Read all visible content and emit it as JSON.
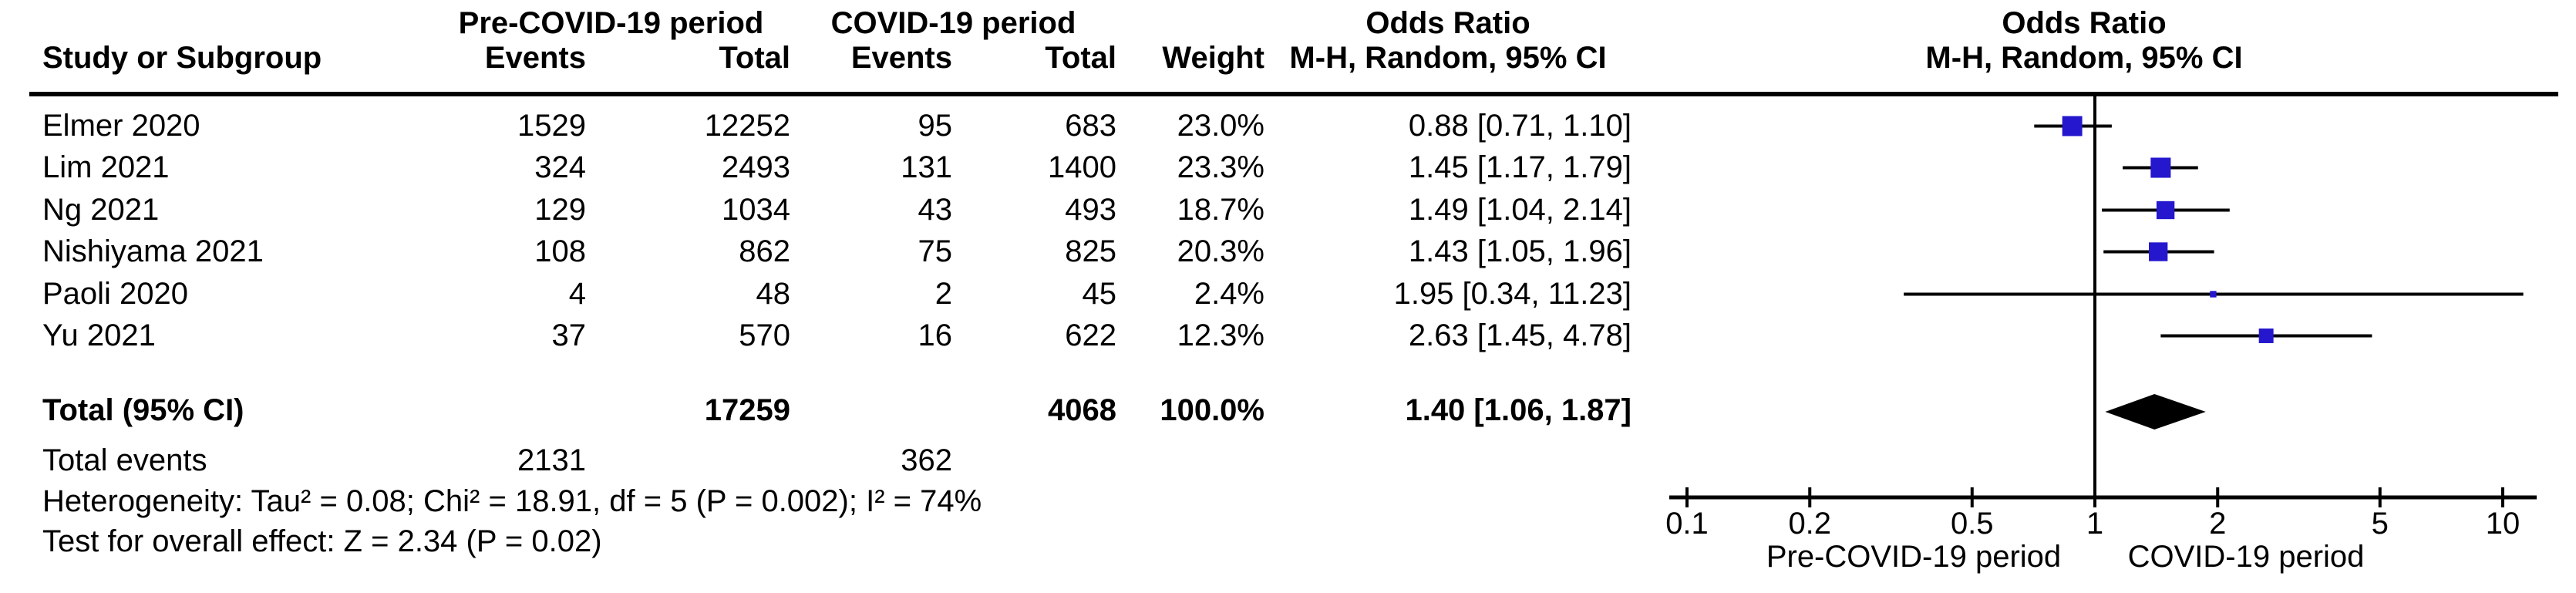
{
  "table": {
    "group_headers": {
      "pre": "Pre-COVID-19 period",
      "covid": "COVID-19 period",
      "or": "Odds Ratio"
    },
    "plot_headers": {
      "or": "Odds Ratio",
      "method": "M-H, Random, 95% CI"
    },
    "col_headers": {
      "study": "Study or Subgroup",
      "events_pre": "Events",
      "total_pre": "Total",
      "events_covid": "Events",
      "total_covid": "Total",
      "weight": "Weight",
      "ci": "M-H, Random, 95% CI"
    },
    "rows": [
      {
        "study": "Elmer 2020",
        "events_pre": "1529",
        "total_pre": "12252",
        "events_covid": "95",
        "total_covid": "683",
        "weight": "23.0%",
        "ci": "0.88 [0.71, 1.10]"
      },
      {
        "study": "Lim 2021",
        "events_pre": "324",
        "total_pre": "2493",
        "events_covid": "131",
        "total_covid": "1400",
        "weight": "23.3%",
        "ci": "1.45 [1.17, 1.79]"
      },
      {
        "study": "Ng 2021",
        "events_pre": "129",
        "total_pre": "1034",
        "events_covid": "43",
        "total_covid": "493",
        "weight": "18.7%",
        "ci": "1.49 [1.04, 2.14]"
      },
      {
        "study": "Nishiyama 2021",
        "events_pre": "108",
        "total_pre": "862",
        "events_covid": "75",
        "total_covid": "825",
        "weight": "20.3%",
        "ci": "1.43 [1.05, 1.96]"
      },
      {
        "study": "Paoli 2020",
        "events_pre": "4",
        "total_pre": "48",
        "events_covid": "2",
        "total_covid": "45",
        "weight": "2.4%",
        "ci": "1.95 [0.34, 11.23]"
      },
      {
        "study": "Yu 2021",
        "events_pre": "37",
        "total_pre": "570",
        "events_covid": "16",
        "total_covid": "622",
        "weight": "12.3%",
        "ci": "2.63 [1.45, 4.78]"
      }
    ],
    "total_row": {
      "label": "Total (95% CI)",
      "total_pre": "17259",
      "total_covid": "4068",
      "weight": "100.0%",
      "ci": "1.40 [1.06, 1.87]"
    },
    "total_events_row": {
      "label": "Total events",
      "events_pre": "2131",
      "events_covid": "362"
    },
    "heterogeneity": "Heterogeneity: Tau² = 0.08; Chi² = 18.91, df = 5 (P = 0.002); I² = 74%",
    "overall_effect": "Test for overall effect: Z = 2.34 (P = 0.02)"
  },
  "chart_data": {
    "type": "forest",
    "x_scale": "log10",
    "effect_measure": "Odds Ratio",
    "method": "M-H, Random, 95% CI",
    "studies": [
      {
        "name": "Elmer 2020",
        "events_pre": 1529,
        "total_pre": 12252,
        "events_covid": 95,
        "total_covid": 683,
        "weight_pct": 23.0,
        "or": 0.88,
        "ci_low": 0.71,
        "ci_high": 1.1
      },
      {
        "name": "Lim 2021",
        "events_pre": 324,
        "total_pre": 2493,
        "events_covid": 131,
        "total_covid": 1400,
        "weight_pct": 23.3,
        "or": 1.45,
        "ci_low": 1.17,
        "ci_high": 1.79
      },
      {
        "name": "Ng 2021",
        "events_pre": 129,
        "total_pre": 1034,
        "events_covid": 43,
        "total_covid": 493,
        "weight_pct": 18.7,
        "or": 1.49,
        "ci_low": 1.04,
        "ci_high": 2.14
      },
      {
        "name": "Nishiyama 2021",
        "events_pre": 108,
        "total_pre": 862,
        "events_covid": 75,
        "total_covid": 825,
        "weight_pct": 20.3,
        "or": 1.43,
        "ci_low": 1.05,
        "ci_high": 1.96
      },
      {
        "name": "Paoli 2020",
        "events_pre": 4,
        "total_pre": 48,
        "events_covid": 2,
        "total_covid": 45,
        "weight_pct": 2.4,
        "or": 1.95,
        "ci_low": 0.34,
        "ci_high": 11.23
      },
      {
        "name": "Yu 2021",
        "events_pre": 37,
        "total_pre": 570,
        "events_covid": 16,
        "total_covid": 622,
        "weight_pct": 12.3,
        "or": 2.63,
        "ci_low": 1.45,
        "ci_high": 4.78
      }
    ],
    "total": {
      "name": "Total (95% CI)",
      "or": 1.4,
      "ci_low": 1.06,
      "ci_high": 1.87,
      "weight_pct": 100.0
    },
    "axis_ticks": [
      0.1,
      0.2,
      0.5,
      1,
      2,
      5,
      10
    ],
    "axis_labels": {
      "left": "Pre-COVID-19 period",
      "right": "COVID-19 period"
    },
    "marker_color": "#2517cd",
    "diamond_color": "#000000",
    "line_color": "#000000"
  }
}
